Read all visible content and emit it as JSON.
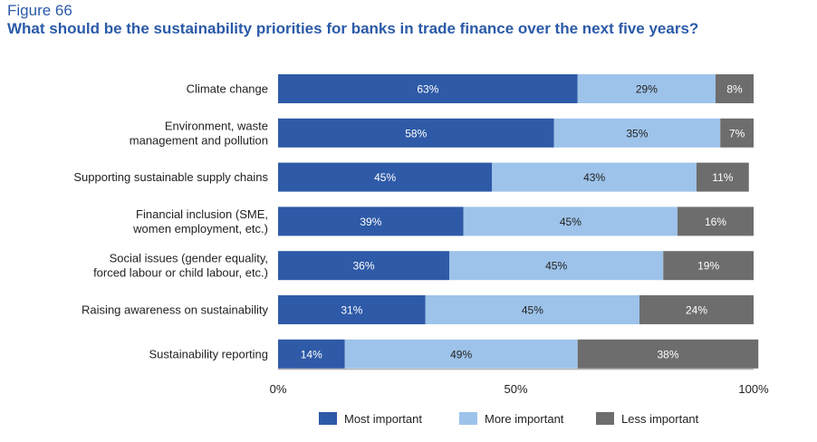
{
  "figure_label": "Figure 66",
  "figure_title": "What should be the sustainability priorities for banks in trade finance over the next five years?",
  "chart_data": {
    "type": "bar",
    "orientation": "horizontal",
    "stacked": true,
    "categories": [
      [
        "Climate change"
      ],
      [
        "Environment, waste",
        "management and pollution"
      ],
      [
        "Supporting sustainable supply chains"
      ],
      [
        "Financial inclusion (SME,",
        "women employment, etc.)"
      ],
      [
        "Social issues (gender equality,",
        "forced labour or child labour, etc.)"
      ],
      [
        "Raising awareness on sustainability"
      ],
      [
        "Sustainability reporting"
      ]
    ],
    "series": [
      {
        "name": "Most important",
        "color": "#2e5aa7",
        "text_color": "#ffffff",
        "values": [
          63,
          58,
          45,
          39,
          36,
          31,
          14
        ]
      },
      {
        "name": "More important",
        "color": "#9dc3ea",
        "text_color": "#222222",
        "values": [
          29,
          35,
          43,
          45,
          45,
          45,
          49
        ]
      },
      {
        "name": "Less important",
        "color": "#6d6d6d",
        "text_color": "#ffffff",
        "values": [
          8,
          7,
          11,
          16,
          19,
          24,
          38
        ]
      }
    ],
    "xlim": [
      0,
      100
    ],
    "x_ticks": [
      "0%",
      "50%",
      "100%"
    ],
    "grid": false,
    "legend_position": "bottom"
  }
}
